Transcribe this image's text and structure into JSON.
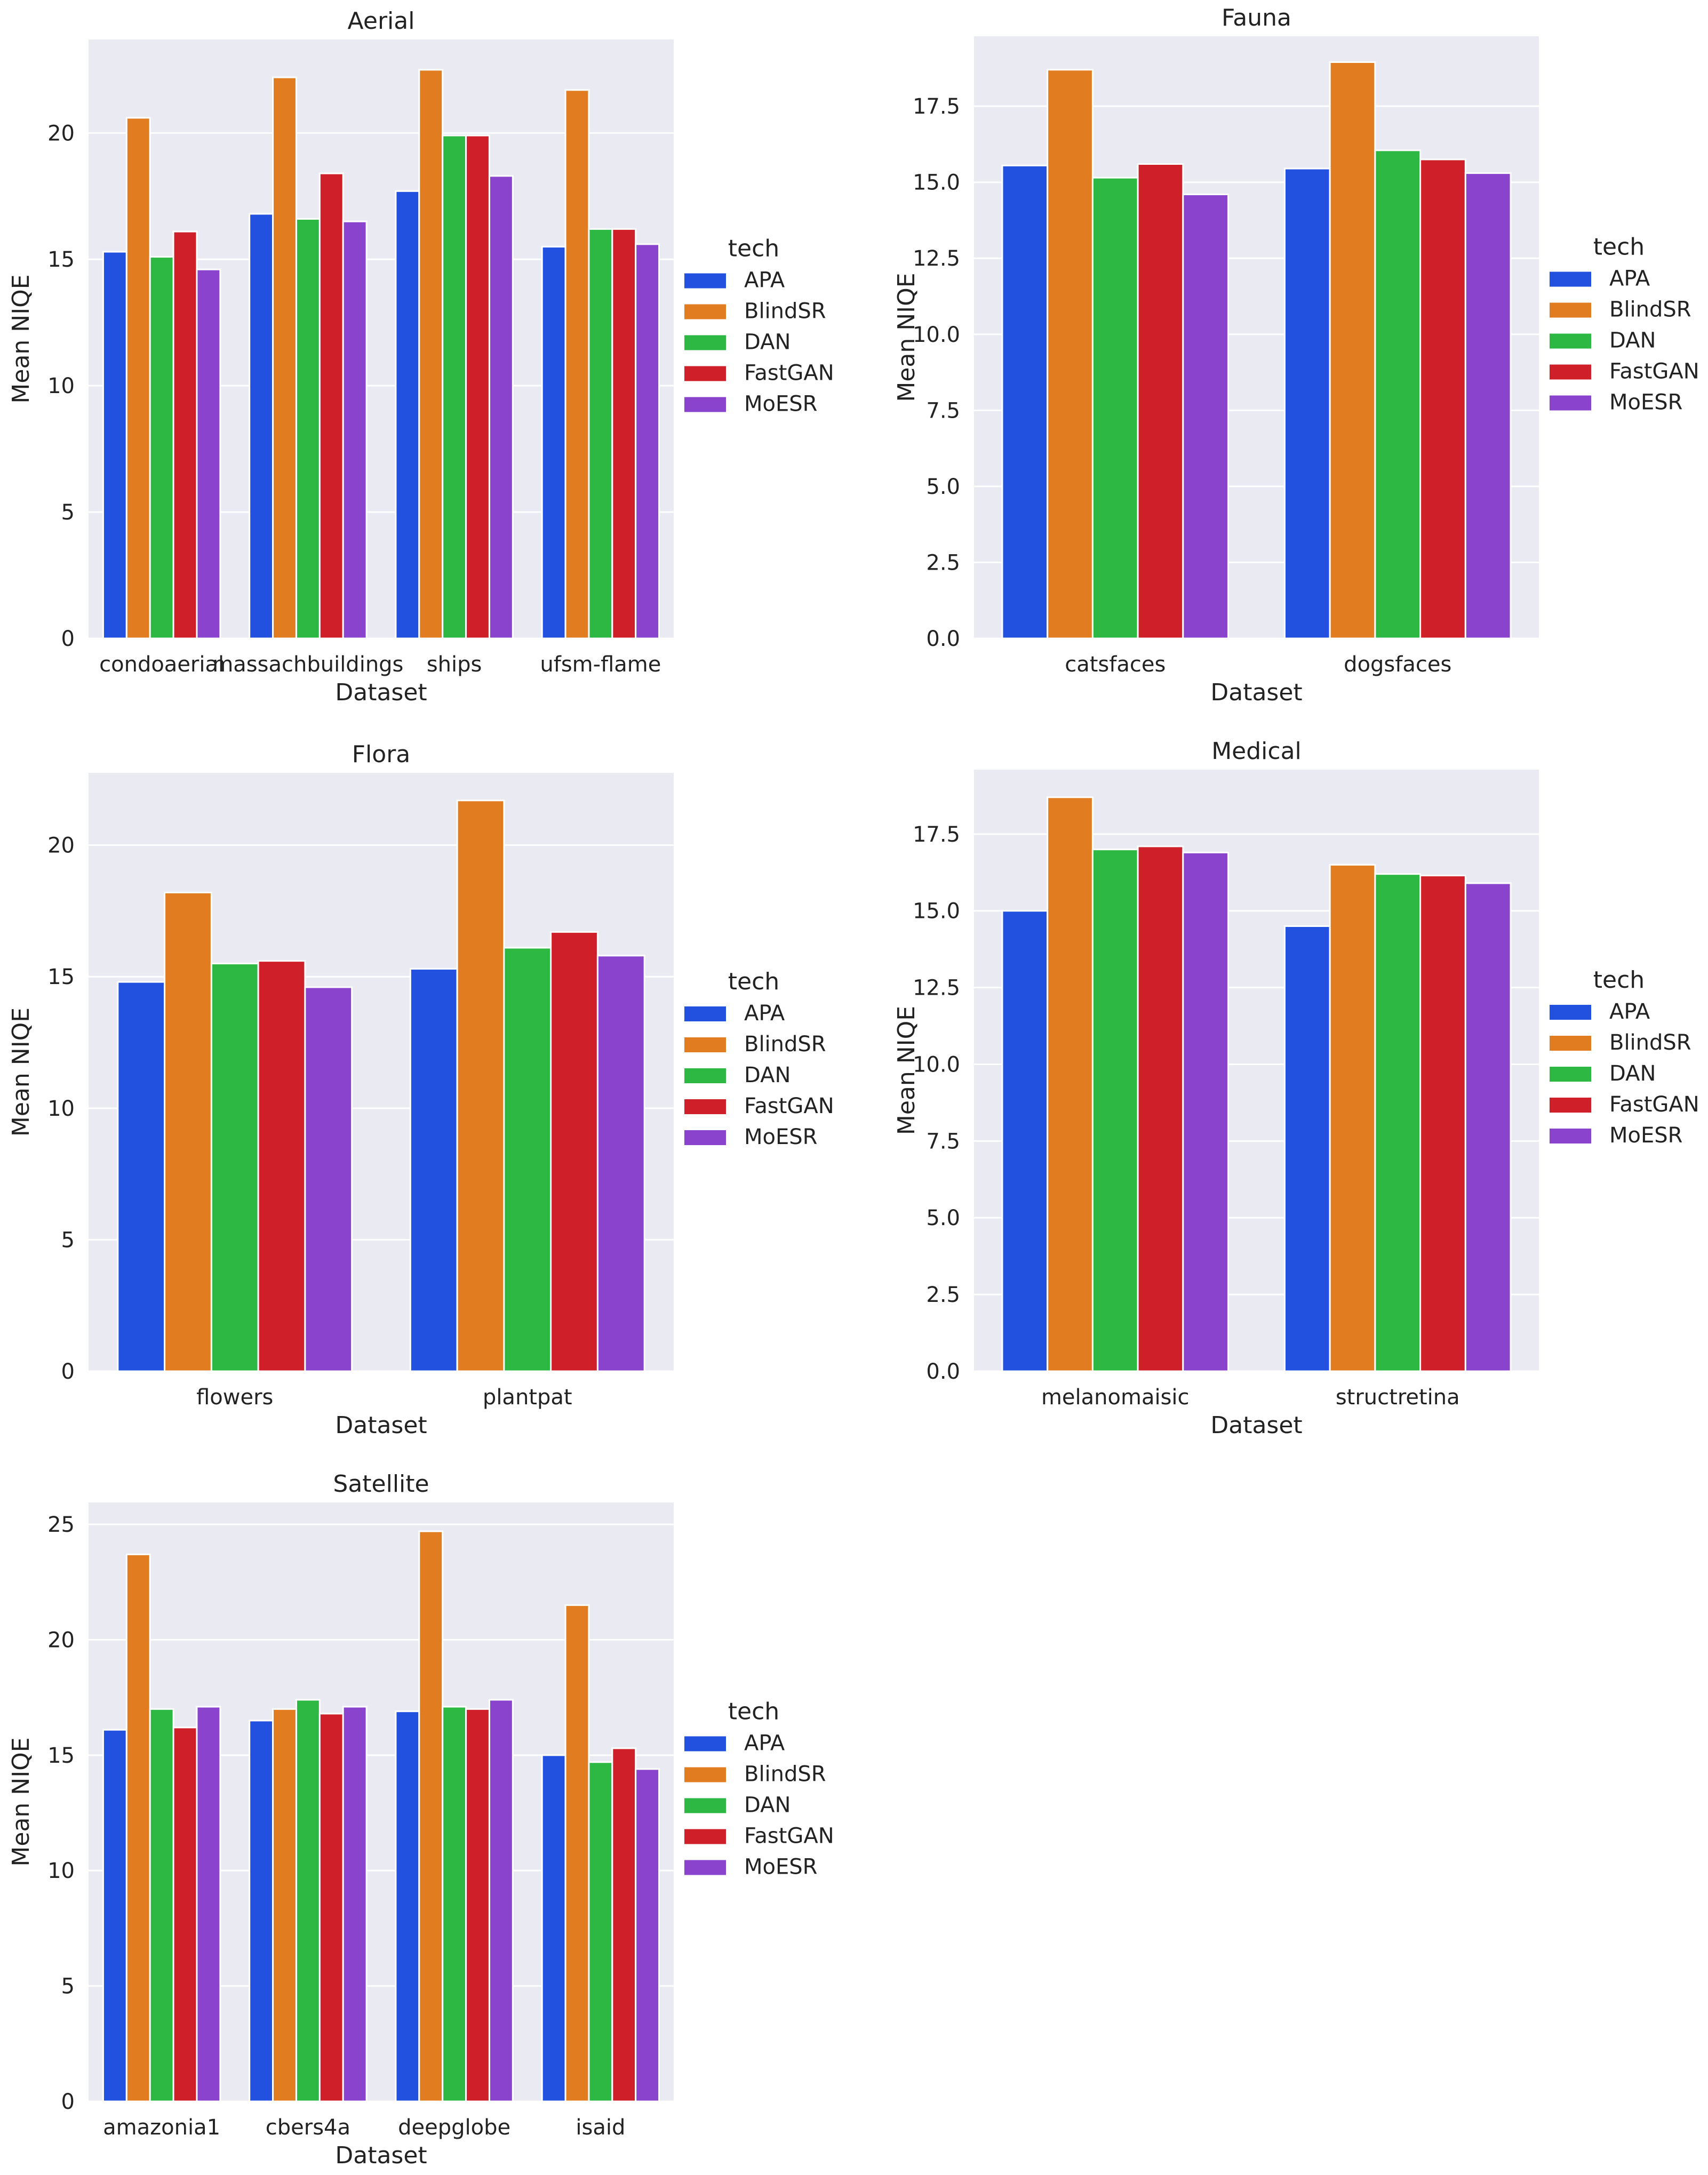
{
  "legend_title": "tech",
  "techs": [
    "APA",
    "BlindSR",
    "DAN",
    "FastGAN",
    "MoESR"
  ],
  "colors": {
    "APA": "#2251e0",
    "BlindSR": "#e17c21",
    "DAN": "#2db743",
    "FastGAN": "#cf1f28",
    "MoESR": "#8a43cd",
    "plot_background": "#eaeaf2",
    "grid": "#ffffff"
  },
  "chart_data": [
    {
      "type": "bar",
      "title": "Aerial",
      "xlabel": "Dataset",
      "ylabel": "Mean NIQE",
      "ylim": [
        0,
        23.7
      ],
      "yticks": [
        0,
        5,
        10,
        15,
        20
      ],
      "ytick_labels": [
        "0",
        "5",
        "10",
        "15",
        "20"
      ],
      "grid": true,
      "legend_position": "right",
      "categories": [
        "condoaerial",
        "massachbuildings",
        "ships",
        "ufsm-flame"
      ],
      "series": [
        {
          "name": "APA",
          "values": [
            15.3,
            16.8,
            17.7,
            15.5
          ]
        },
        {
          "name": "BlindSR",
          "values": [
            20.6,
            22.2,
            22.5,
            21.7
          ]
        },
        {
          "name": "DAN",
          "values": [
            15.1,
            16.6,
            19.9,
            16.2
          ]
        },
        {
          "name": "FastGAN",
          "values": [
            16.1,
            18.4,
            19.9,
            16.2
          ]
        },
        {
          "name": "MoESR",
          "values": [
            14.6,
            16.5,
            18.3,
            15.6
          ]
        }
      ]
    },
    {
      "type": "bar",
      "title": "Fauna",
      "xlabel": "Dataset",
      "ylabel": "Mean NIQE",
      "ylim": [
        0,
        19.8
      ],
      "yticks": [
        0,
        2.5,
        5,
        7.5,
        10,
        12.5,
        15,
        17.5
      ],
      "ytick_labels": [
        "0.0",
        "2.5",
        "5.0",
        "7.5",
        "10.0",
        "12.5",
        "15.0",
        "17.5"
      ],
      "grid": true,
      "legend_position": "right",
      "categories": [
        "catsfaces",
        "dogsfaces"
      ],
      "series": [
        {
          "name": "APA",
          "values": [
            15.55,
            15.45
          ]
        },
        {
          "name": "BlindSR",
          "values": [
            18.7,
            18.95
          ]
        },
        {
          "name": "DAN",
          "values": [
            15.15,
            16.05
          ]
        },
        {
          "name": "FastGAN",
          "values": [
            15.6,
            15.75
          ]
        },
        {
          "name": "MoESR",
          "values": [
            14.6,
            15.3
          ]
        }
      ]
    },
    {
      "type": "bar",
      "title": "Flora",
      "xlabel": "Dataset",
      "ylabel": "Mean NIQE",
      "ylim": [
        0,
        22.75
      ],
      "yticks": [
        0,
        5,
        10,
        15,
        20
      ],
      "ytick_labels": [
        "0",
        "5",
        "10",
        "15",
        "20"
      ],
      "grid": true,
      "legend_position": "right",
      "categories": [
        "flowers",
        "plantpat"
      ],
      "series": [
        {
          "name": "APA",
          "values": [
            14.8,
            15.3
          ]
        },
        {
          "name": "BlindSR",
          "values": [
            18.2,
            21.7
          ]
        },
        {
          "name": "DAN",
          "values": [
            15.5,
            16.1
          ]
        },
        {
          "name": "FastGAN",
          "values": [
            15.6,
            16.7
          ]
        },
        {
          "name": "MoESR",
          "values": [
            14.6,
            15.8
          ]
        }
      ]
    },
    {
      "type": "bar",
      "title": "Medical",
      "xlabel": "Dataset",
      "ylabel": "Mean NIQE",
      "ylim": [
        0,
        19.6
      ],
      "yticks": [
        0,
        2.5,
        5,
        7.5,
        10,
        12.5,
        15,
        17.5
      ],
      "ytick_labels": [
        "0.0",
        "2.5",
        "5.0",
        "7.5",
        "10.0",
        "12.5",
        "15.0",
        "17.5"
      ],
      "grid": true,
      "legend_position": "right",
      "categories": [
        "melanomaisic",
        "structretina"
      ],
      "series": [
        {
          "name": "APA",
          "values": [
            15.0,
            14.5
          ]
        },
        {
          "name": "BlindSR",
          "values": [
            18.7,
            16.5
          ]
        },
        {
          "name": "DAN",
          "values": [
            17.0,
            16.2
          ]
        },
        {
          "name": "FastGAN",
          "values": [
            17.1,
            16.15
          ]
        },
        {
          "name": "MoESR",
          "values": [
            16.9,
            15.9
          ]
        }
      ]
    },
    {
      "type": "bar",
      "title": "Satellite",
      "xlabel": "Dataset",
      "ylabel": "Mean NIQE",
      "ylim": [
        0,
        25.95
      ],
      "yticks": [
        0,
        5,
        10,
        15,
        20,
        25
      ],
      "ytick_labels": [
        "0",
        "5",
        "10",
        "15",
        "20",
        "25"
      ],
      "grid": true,
      "legend_position": "right",
      "categories": [
        "amazonia1",
        "cbers4a",
        "deepglobe",
        "isaid"
      ],
      "series": [
        {
          "name": "APA",
          "values": [
            16.1,
            16.5,
            16.9,
            15.0
          ]
        },
        {
          "name": "BlindSR",
          "values": [
            23.7,
            17.0,
            24.7,
            21.5
          ]
        },
        {
          "name": "DAN",
          "values": [
            17.0,
            17.4,
            17.1,
            14.7
          ]
        },
        {
          "name": "FastGAN",
          "values": [
            16.2,
            16.8,
            17.0,
            15.3
          ]
        },
        {
          "name": "MoESR",
          "values": [
            17.1,
            17.1,
            17.4,
            14.4
          ]
        }
      ]
    }
  ]
}
